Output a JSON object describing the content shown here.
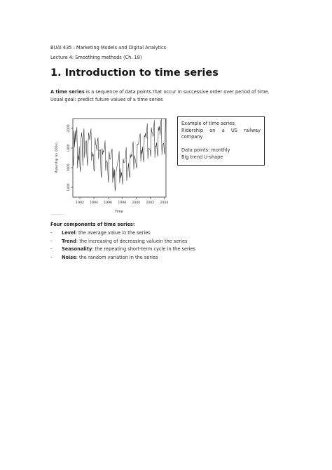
{
  "header": {
    "course": "BUAI 435 : Marketing Models and Digital Analytics",
    "lecture": "Lecture 4: Smoothing methods (Ch. 18)"
  },
  "section": {
    "title": "1. Introduction to time series"
  },
  "intro": {
    "term": "A time series",
    "definition": " is a sequence of data points that occur in successive order over period of time.",
    "goal": "Usual goal: predict future values of a time series"
  },
  "callout": {
    "line1": "Example of time series:",
    "line2": "Ridership on a US railway",
    "line3": "company",
    "line4": "Data points: monthly",
    "line5": "Big trend  U-shape"
  },
  "components": {
    "heading": "Four components of time series:",
    "items": [
      {
        "term": "Level",
        "text": ": the average value in the series"
      },
      {
        "term": "Trend",
        "text": ": the increasing of decreasing valuein the series"
      },
      {
        "term": "Seasonality",
        "text": ": the repeating short-term cycle in the series"
      },
      {
        "term": "Noise",
        "text": ": the random variation in the series"
      }
    ]
  },
  "chart_data": {
    "type": "line",
    "title": "",
    "xlabel": "Time",
    "ylabel": "Ridership (in 000s)",
    "xlim": [
      1991,
      2004.25
    ],
    "ylim": [
      1300,
      2100
    ],
    "x_ticks": [
      "1992",
      "1994",
      "1996",
      "1998",
      "2000",
      "2002",
      "2004"
    ],
    "y_ticks": [
      "1400",
      "1600",
      "1800",
      "2000"
    ],
    "grid": false,
    "series": [
      {
        "x": [
          1991.0,
          1991.083,
          1991.167,
          1991.25,
          1991.333,
          1991.417,
          1991.5,
          1991.583,
          1991.667,
          1991.75,
          1991.833,
          1991.917,
          1992.0,
          1992.083,
          1992.167,
          1992.25,
          1992.333,
          1992.417,
          1992.5,
          1992.583,
          1992.667,
          1992.75,
          1992.833,
          1992.917,
          1993.0,
          1993.083,
          1993.167,
          1993.25,
          1993.333,
          1993.417,
          1993.5,
          1993.583,
          1993.667,
          1993.75,
          1993.833,
          1993.917,
          1994.0,
          1994.083,
          1994.167,
          1994.25,
          1994.333,
          1994.417,
          1994.5,
          1994.583,
          1994.667,
          1994.75,
          1994.833,
          1994.917,
          1995.0,
          1995.083,
          1995.167,
          1995.25,
          1995.333,
          1995.417,
          1995.5,
          1995.583,
          1995.667,
          1995.75,
          1995.833,
          1995.917,
          1996.0,
          1996.083,
          1996.167,
          1996.25,
          1996.333,
          1996.417,
          1996.5,
          1996.583,
          1996.667,
          1996.75,
          1996.833,
          1996.917,
          1997.0,
          1997.083,
          1997.167,
          1997.25,
          1997.333,
          1997.417,
          1997.5,
          1997.583,
          1997.667,
          1997.75,
          1997.833,
          1997.917,
          1998.0,
          1998.083,
          1998.167,
          1998.25,
          1998.333,
          1998.417,
          1998.5,
          1998.583,
          1998.667,
          1998.75,
          1998.833,
          1998.917,
          1999.0,
          1999.083,
          1999.167,
          1999.25,
          1999.333,
          1999.417,
          1999.5,
          1999.583,
          1999.667,
          1999.75,
          1999.833,
          1999.917,
          2000.0,
          2000.083,
          2000.167,
          2000.25,
          2000.333,
          2000.417,
          2000.5,
          2000.583,
          2000.667,
          2000.75,
          2000.833,
          2000.917,
          2001.0,
          2001.083,
          2001.167,
          2001.25,
          2001.333,
          2001.417,
          2001.5,
          2001.583,
          2001.667,
          2001.75,
          2001.833,
          2001.917,
          2002.0,
          2002.083,
          2002.167,
          2002.25,
          2002.333,
          2002.417,
          2002.5,
          2002.583,
          2002.667,
          2002.75,
          2002.833,
          2002.917,
          2003.0,
          2003.083,
          2003.167,
          2003.25,
          2003.333,
          2003.417,
          2003.5,
          2003.583,
          2003.667,
          2003.75,
          2003.833,
          2003.917,
          2004.0,
          2004.083,
          2004.167
        ],
        "y": [
          1709,
          1621,
          1973,
          1812,
          1975,
          1862,
          1940,
          2013,
          1596,
          1725,
          1676,
          1814,
          1615,
          1557,
          1891,
          1956,
          1885,
          1623,
          1903,
          1997,
          1704,
          1810,
          1862,
          1875,
          1705,
          1619,
          1837,
          1957,
          1917,
          1882,
          1933,
          1996,
          1673,
          1753,
          1720,
          1734,
          1563,
          1574,
          1903,
          1834,
          1831,
          1776,
          1868,
          1907,
          1686,
          1779,
          1776,
          1783,
          1548,
          1497,
          1798,
          1733,
          1772,
          1761,
          1792,
          1875,
          1571,
          1647,
          1673,
          1646,
          1518,
          1448,
          1765,
          1690,
          1686,
          1711,
          1759,
          1793,
          1448,
          1600,
          1494,
          1581,
          1363,
          1405,
          1563,
          1603,
          1631,
          1678,
          1682,
          1768,
          1443,
          1592,
          1494,
          1552,
          1509,
          1428,
          1690,
          1649,
          1653,
          1658,
          1716,
          1807,
          1468,
          1572,
          1580,
          1646,
          1539,
          1498,
          1736,
          1701,
          1734,
          1715,
          1812,
          1866,
          1585,
          1723,
          1692,
          1685,
          1626,
          1593,
          1838,
          1831,
          1843,
          1880,
          1923,
          1946,
          1666,
          1782,
          1738,
          1813,
          1711,
          1656,
          1927,
          1915,
          1952,
          1899,
          1958,
          2050,
          1688,
          1796,
          1794,
          1793,
          1774,
          1714,
          2008,
          1957,
          1957,
          1915,
          1988,
          2083,
          1703,
          1823,
          1814,
          1855,
          1761,
          1713,
          2015,
          1978,
          2023,
          1932,
          2069,
          2093,
          1734,
          1833,
          1838,
          1850,
          1782,
          1735,
          2097
        ]
      }
    ]
  }
}
